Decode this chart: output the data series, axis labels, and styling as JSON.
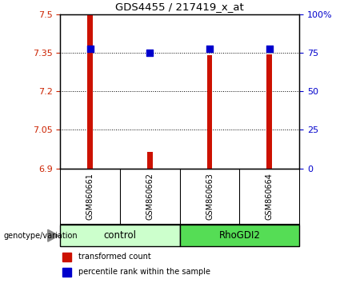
{
  "title": "GDS4455 / 217419_x_at",
  "samples": [
    "GSM860661",
    "GSM860662",
    "GSM860663",
    "GSM860664"
  ],
  "groups": [
    "control",
    "control",
    "RhoGDI2",
    "RhoGDI2"
  ],
  "red_values": [
    7.5,
    6.965,
    7.34,
    7.345
  ],
  "blue_values": [
    7.365,
    7.35,
    7.365,
    7.365
  ],
  "ylim_left": [
    6.9,
    7.5
  ],
  "ylim_right": [
    0,
    100
  ],
  "yticks_left": [
    6.9,
    7.05,
    7.2,
    7.35,
    7.5
  ],
  "yticks_right": [
    0,
    25,
    50,
    75,
    100
  ],
  "ytick_labels_left": [
    "6.9",
    "7.05",
    "7.2",
    "7.35",
    "7.5"
  ],
  "ytick_labels_right": [
    "0",
    "25",
    "50",
    "75",
    "100%"
  ],
  "hlines": [
    7.05,
    7.2,
    7.35
  ],
  "bar_width": 0.09,
  "dot_size": 30,
  "group_colors": {
    "control": "#ccffcc",
    "RhoGDI2": "#55dd55"
  },
  "red_color": "#cc1100",
  "blue_color": "#0000cc",
  "left_tick_color": "#cc2200",
  "right_tick_color": "#0000cc",
  "legend_red_label": "transformed count",
  "legend_blue_label": "percentile rank within the sample",
  "genotype_label": "genotype/variation",
  "sample_bg": "#cccccc",
  "plot_bg": "#ffffff"
}
